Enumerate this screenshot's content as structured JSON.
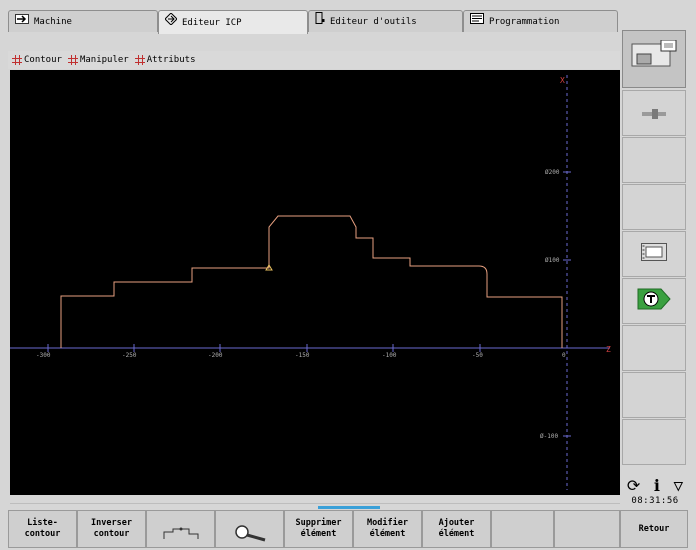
{
  "tabs": [
    {
      "label": "Machine",
      "icon": "arrow-right-icon"
    },
    {
      "label": "Editeur ICP",
      "icon": "diamond-arrow-icon",
      "active": true
    },
    {
      "label": "Editeur d'outils",
      "icon": "tool-holder-icon"
    },
    {
      "label": "Programmation",
      "icon": "program-list-icon"
    }
  ],
  "menu": [
    {
      "label": "Contour"
    },
    {
      "label": "Manipuler"
    },
    {
      "label": "Attributs"
    }
  ],
  "plot": {
    "x_ticks": [
      "-300",
      "-250",
      "-200",
      "-150",
      "-100",
      "-50",
      "0"
    ],
    "y_ticks": [
      "Ø200",
      "Ø100",
      "Ø-100"
    ],
    "axis_x_label": "Z",
    "axis_y_label": "X",
    "contour_color": "#e8a080",
    "axis_color": "#6a6ad0"
  },
  "status": {
    "clock": "08:31:56",
    "icons": [
      "refresh-icon",
      "info-icon",
      "triangle-down-icon"
    ]
  },
  "softkeys": [
    {
      "label": "Liste-\ncontour"
    },
    {
      "label": "Inverser\ncontour"
    },
    {
      "label": "",
      "icon": "contour-symbol-icon"
    },
    {
      "label": "",
      "icon": "magnifier-icon"
    },
    {
      "label": "Supprimer\nélément"
    },
    {
      "label": "Modifier\nélément"
    },
    {
      "label": "Ajouter\nélément"
    },
    {
      "label": ""
    },
    {
      "label": ""
    },
    {
      "label": "Retour"
    }
  ],
  "right_buttons": [
    {
      "icon": "machine-view-icon"
    },
    {
      "icon": "slider-icon"
    },
    {
      "icon": ""
    },
    {
      "icon": ""
    },
    {
      "icon": "film-frame-icon"
    },
    {
      "icon": "tool-t-icon"
    },
    {
      "icon": ""
    },
    {
      "icon": ""
    },
    {
      "icon": ""
    }
  ]
}
